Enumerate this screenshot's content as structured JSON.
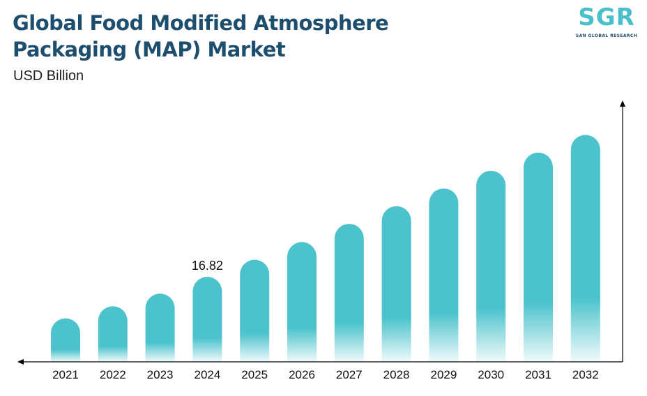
{
  "header": {
    "title_line1": "Global Food Modified Atmosphere",
    "title_line2": "Packaging (MAP) Market",
    "unit": "USD Billion"
  },
  "logo": {
    "letters": "SGR",
    "tagline": "SAN GLOBAL RESEARCH"
  },
  "colors": {
    "bar": "#4cc3cc",
    "title": "#1d4e6e",
    "axis": "#000000"
  },
  "chart_data": {
    "type": "bar",
    "title": "Global Food Modified Atmosphere Packaging (MAP) Market",
    "ylabel": "USD Billion",
    "categories": [
      "2021",
      "2022",
      "2023",
      "2024",
      "2025",
      "2026",
      "2027",
      "2028",
      "2029",
      "2030",
      "2031",
      "2032"
    ],
    "values": [
      8.6,
      11.0,
      13.5,
      16.82,
      20.2,
      23.7,
      27.3,
      30.8,
      34.3,
      37.8,
      41.4,
      44.9
    ],
    "data_labels": [
      {
        "category": "2024",
        "text": "16.82"
      }
    ],
    "ylim": [
      0,
      48
    ],
    "grid": false,
    "legend": "none",
    "y_axis_ticks": "none"
  }
}
